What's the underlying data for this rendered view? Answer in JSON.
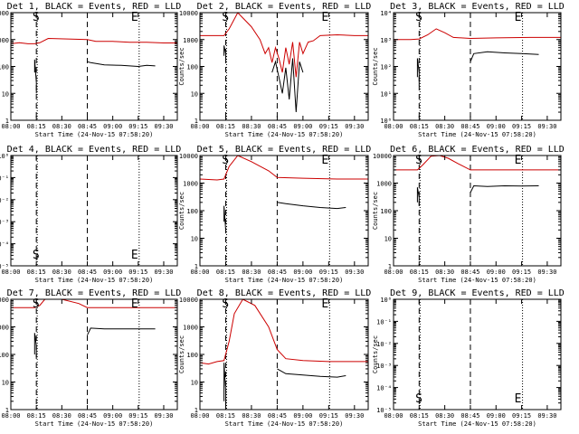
{
  "figure": {
    "x_title": "Start Time (24-Nov-15 07:58:20)",
    "y_title": "Counts/sec",
    "x_ticks": [
      "08:00",
      "08:15",
      "08:30",
      "08:45",
      "09:00",
      "09:15",
      "09:30"
    ],
    "y_ticks_std": [
      "1",
      "10",
      "100",
      "1000",
      "10000"
    ],
    "y_ticks_exp": [
      "10⁰",
      "10¹",
      "10²",
      "10³",
      "10⁴"
    ],
    "y_ticks_tiny": [
      "10⁻⁵",
      "10⁻⁴",
      "10⁻³",
      "10⁻²",
      "10⁻¹",
      "10⁰"
    ]
  },
  "chart_data": [
    {
      "type": "line",
      "title": "Det 1, BLACK = Events, RED = LLD",
      "xlabel": "Start Time (24-Nov-15 07:58:20)",
      "ylabel": "Counts/sec",
      "xlim": [
        "08:00",
        "09:38"
      ],
      "ylim": [
        1,
        10000
      ],
      "y_scale": "log",
      "y_tick_style": "std",
      "markers": [
        {
          "text": "S",
          "time": "08:17"
        },
        {
          "text": "E",
          "time": "09:15"
        }
      ],
      "dashed_lines": [
        "08:15",
        "08:45"
      ],
      "dotted_lines": [
        "08:15",
        "09:15"
      ],
      "series": [
        {
          "color": "#cc0000",
          "x": [
            "08:00",
            "08:05",
            "08:10",
            "08:14",
            "08:17",
            "08:22",
            "08:45",
            "08:50",
            "09:00",
            "09:10",
            "09:20",
            "09:30",
            "09:38"
          ],
          "y": [
            700,
            760,
            700,
            700,
            760,
            1100,
            1000,
            850,
            850,
            790,
            790,
            750,
            750
          ]
        },
        {
          "color": "#000000",
          "x": [
            "08:14",
            "08:14",
            "08:15",
            "08:15"
          ],
          "y": [
            60,
            180,
            25,
            10
          ]
        },
        {
          "color": "#000000",
          "x": [
            "08:45",
            "08:47",
            "08:55",
            "09:05",
            "09:15",
            "09:20",
            "09:25"
          ],
          "y": [
            150,
            140,
            115,
            110,
            100,
            110,
            105
          ]
        }
      ]
    },
    {
      "type": "line",
      "title": "Det 2, BLACK = Events, RED = LLD",
      "xlabel": "Start Time (24-Nov-15 07:58:20)",
      "ylabel": "Counts/sec",
      "xlim": [
        "08:00",
        "09:38"
      ],
      "ylim": [
        1,
        10000
      ],
      "y_scale": "log",
      "y_tick_style": "std",
      "markers": [
        {
          "text": "S",
          "time": "08:17"
        },
        {
          "text": "E",
          "time": "09:15"
        }
      ],
      "dashed_lines": [
        "08:15",
        "08:45"
      ],
      "dotted_lines": [
        "08:15",
        "09:15"
      ],
      "series": [
        {
          "color": "#cc0000",
          "x": [
            "08:00",
            "08:10",
            "08:14",
            "08:17",
            "08:22",
            "08:30",
            "08:35",
            "08:38",
            "08:40",
            "08:42",
            "08:44",
            "08:46",
            "08:48",
            "08:50",
            "08:52",
            "08:54",
            "08:56",
            "08:58",
            "09:00",
            "09:03",
            "09:06",
            "09:10",
            "09:20",
            "09:30",
            "09:38"
          ],
          "y": [
            1400,
            1400,
            1400,
            2500,
            10000,
            3000,
            1000,
            300,
            500,
            140,
            500,
            200,
            60,
            500,
            120,
            800,
            40,
            800,
            300,
            800,
            900,
            1400,
            1500,
            1400,
            1400
          ]
        },
        {
          "color": "#000000",
          "x": [
            "08:14",
            "08:14",
            "08:15",
            "08:15"
          ],
          "y": [
            250,
            600,
            300,
            200
          ]
        },
        {
          "color": "#000000",
          "x": [
            "08:42",
            "08:44",
            "08:46",
            "08:48",
            "08:50",
            "08:52",
            "08:54",
            "08:56",
            "08:58",
            "09:00"
          ],
          "y": [
            60,
            150,
            40,
            10,
            90,
            6,
            200,
            2,
            150,
            60
          ]
        }
      ]
    },
    {
      "type": "line",
      "title": "Det 3, BLACK = Events, RED = LLD",
      "xlabel": "Start Time (24-Nov-15 07:58:20)",
      "ylabel": "Counts/sec",
      "xlim": [
        "08:00",
        "09:38"
      ],
      "ylim": [
        1,
        10000
      ],
      "y_scale": "log",
      "y_tick_style": "exp",
      "markers": [
        {
          "text": "S",
          "time": "08:17"
        },
        {
          "text": "E",
          "time": "09:15"
        }
      ],
      "dashed_lines": [
        "08:15",
        "08:45"
      ],
      "dotted_lines": [
        "08:15",
        "09:15"
      ],
      "series": [
        {
          "color": "#cc0000",
          "x": [
            "08:00",
            "08:10",
            "08:15",
            "08:20",
            "08:25",
            "08:30",
            "08:35",
            "08:45",
            "09:00",
            "09:20",
            "09:38"
          ],
          "y": [
            1000,
            1000,
            1050,
            1500,
            2500,
            1800,
            1200,
            1100,
            1150,
            1200,
            1200
          ]
        },
        {
          "color": "#000000",
          "x": [
            "08:14",
            "08:14",
            "08:15",
            "08:15"
          ],
          "y": [
            40,
            200,
            60,
            20
          ]
        },
        {
          "color": "#000000",
          "x": [
            "08:45",
            "08:47",
            "08:55",
            "09:05",
            "09:15",
            "09:25"
          ],
          "y": [
            150,
            300,
            350,
            320,
            300,
            280
          ]
        }
      ]
    },
    {
      "type": "line",
      "title": "Det 4, BLACK = Events, RED = LLD",
      "xlabel": "Start Time (24-Nov-15 07:58:20)",
      "ylabel": "Counts/sec",
      "xlim": [
        "08:00",
        "09:38"
      ],
      "ylim": [
        1e-05,
        1
      ],
      "y_scale": "log",
      "y_tick_style": "tiny",
      "markers": [
        {
          "text": "S",
          "time": "08:17"
        },
        {
          "text": "E",
          "time": "09:15"
        }
      ],
      "dashed_lines": [
        "08:15",
        "08:45"
      ],
      "dotted_lines": [
        "08:15",
        "09:15"
      ],
      "series": []
    },
    {
      "type": "line",
      "title": "Det 5, BLACK = Events, RED = LLD",
      "xlabel": "Start Time (24-Nov-15 07:58:20)",
      "ylabel": "Counts/sec",
      "xlim": [
        "08:00",
        "09:38"
      ],
      "ylim": [
        1,
        10000
      ],
      "y_scale": "log",
      "y_tick_style": "std",
      "markers": [
        {
          "text": "S",
          "time": "08:17"
        },
        {
          "text": "E",
          "time": "09:15"
        }
      ],
      "dashed_lines": [
        "08:15",
        "08:45"
      ],
      "dotted_lines": [
        "08:15",
        "09:15"
      ],
      "series": [
        {
          "color": "#cc0000",
          "x": [
            "08:00",
            "08:10",
            "08:14",
            "08:17",
            "08:22",
            "08:30",
            "08:40",
            "08:45",
            "09:00",
            "09:20",
            "09:38"
          ],
          "y": [
            1400,
            1300,
            1400,
            4000,
            10000,
            6000,
            2800,
            1600,
            1500,
            1400,
            1400
          ]
        },
        {
          "color": "#000000",
          "x": [
            "08:14",
            "08:14",
            "08:15",
            "08:15"
          ],
          "y": [
            40,
            150,
            20,
            15
          ]
        },
        {
          "color": "#000000",
          "x": [
            "08:45",
            "08:50",
            "09:00",
            "09:10",
            "09:20",
            "09:25"
          ],
          "y": [
            200,
            180,
            150,
            130,
            120,
            130
          ]
        }
      ]
    },
    {
      "type": "line",
      "title": "Det 6, BLACK = Events, RED = LLD",
      "xlabel": "Start Time (24-Nov-15 07:58:20)",
      "ylabel": "Counts/sec",
      "xlim": [
        "08:00",
        "09:38"
      ],
      "ylim": [
        1,
        10000
      ],
      "y_scale": "log",
      "y_tick_style": "std",
      "markers": [
        {
          "text": "S",
          "time": "08:17"
        },
        {
          "text": "E",
          "time": "09:15"
        }
      ],
      "dashed_lines": [
        "08:15",
        "08:45"
      ],
      "dotted_lines": [
        "08:15",
        "09:15"
      ],
      "series": [
        {
          "color": "#cc0000",
          "x": [
            "08:00",
            "08:10",
            "08:14",
            "08:17",
            "08:22",
            "08:27",
            "08:32",
            "08:38",
            "08:45",
            "09:00",
            "09:20",
            "09:38"
          ],
          "y": [
            3000,
            3000,
            3000,
            4500,
            9500,
            10000,
            8000,
            5000,
            3000,
            3000,
            3000,
            3000
          ]
        },
        {
          "color": "#000000",
          "x": [
            "08:14",
            "08:14",
            "08:15",
            "08:15"
          ],
          "y": [
            200,
            700,
            300,
            150
          ]
        },
        {
          "color": "#000000",
          "x": [
            "08:45",
            "08:47",
            "08:55",
            "09:05",
            "09:15",
            "09:25"
          ],
          "y": [
            450,
            800,
            750,
            800,
            780,
            800
          ]
        }
      ]
    },
    {
      "type": "line",
      "title": "Det 7, BLACK = Events, RED = LLD",
      "xlabel": "Start Time (24-Nov-15 07:58:20)",
      "ylabel": "Counts/sec",
      "xlim": [
        "08:00",
        "09:38"
      ],
      "ylim": [
        1,
        10000
      ],
      "y_scale": "log",
      "y_tick_style": "std",
      "markers": [
        {
          "text": "S",
          "time": "08:17"
        },
        {
          "text": "E",
          "time": "09:15"
        }
      ],
      "dashed_lines": [
        "08:15",
        "08:45"
      ],
      "dotted_lines": [
        "08:15",
        "09:15"
      ],
      "series": [
        {
          "color": "#cc0000",
          "x": [
            "08:00",
            "08:10",
            "08:14",
            "08:17",
            "08:20",
            "08:30",
            "08:40",
            "08:45",
            "09:00",
            "09:20",
            "09:38"
          ],
          "y": [
            5000,
            5000,
            5000,
            6000,
            10000,
            10000,
            7000,
            5000,
            5000,
            5000,
            5000
          ]
        },
        {
          "color": "#000000",
          "x": [
            "08:14",
            "08:14",
            "08:15",
            "08:15"
          ],
          "y": [
            100,
            600,
            200,
            80
          ]
        },
        {
          "color": "#000000",
          "x": [
            "08:45",
            "08:47",
            "08:55",
            "09:05",
            "09:15",
            "09:25"
          ],
          "y": [
            500,
            900,
            850,
            850,
            850,
            850
          ]
        }
      ]
    },
    {
      "type": "line",
      "title": "Det 8, BLACK = Events, RED = LLD",
      "xlabel": "Start Time (24-Nov-15 07:58:20)",
      "ylabel": "Counts/sec",
      "xlim": [
        "08:00",
        "09:38"
      ],
      "ylim": [
        1,
        10000
      ],
      "y_scale": "log",
      "y_tick_style": "std",
      "markers": [
        {
          "text": "S",
          "time": "08:17"
        },
        {
          "text": "E",
          "time": "09:15"
        }
      ],
      "dashed_lines": [
        "08:15",
        "08:45"
      ],
      "dotted_lines": [
        "08:15",
        "09:15"
      ],
      "series": [
        {
          "color": "#cc0000",
          "x": [
            "08:00",
            "08:05",
            "08:10",
            "08:14",
            "08:17",
            "08:20",
            "08:25",
            "08:32",
            "08:40",
            "08:45",
            "08:50",
            "09:00",
            "09:15",
            "09:30",
            "09:38"
          ],
          "y": [
            50,
            45,
            55,
            60,
            300,
            3000,
            10000,
            6000,
            1000,
            150,
            70,
            60,
            55,
            55,
            55
          ]
        },
        {
          "color": "#000000",
          "x": [
            "08:14",
            "08:14",
            "08:15",
            "08:15"
          ],
          "y": [
            2,
            50,
            5,
            1
          ]
        },
        {
          "color": "#000000",
          "x": [
            "08:45",
            "08:50",
            "09:00",
            "09:10",
            "09:20",
            "09:25"
          ],
          "y": [
            30,
            20,
            18,
            16,
            15,
            17
          ]
        }
      ]
    },
    {
      "type": "line",
      "title": "Det 9, BLACK = Events, RED = LLD",
      "xlabel": "Start Time (24-Nov-15 07:58:20)",
      "ylabel": "Counts/sec",
      "xlim": [
        "08:00",
        "09:38"
      ],
      "ylim": [
        1e-05,
        1
      ],
      "y_scale": "log",
      "y_tick_style": "tiny",
      "markers": [
        {
          "text": "S",
          "time": "08:17"
        },
        {
          "text": "E",
          "time": "09:15"
        }
      ],
      "dashed_lines": [
        "08:15",
        "08:45"
      ],
      "dotted_lines": [
        "08:15",
        "09:15"
      ],
      "series": []
    }
  ]
}
